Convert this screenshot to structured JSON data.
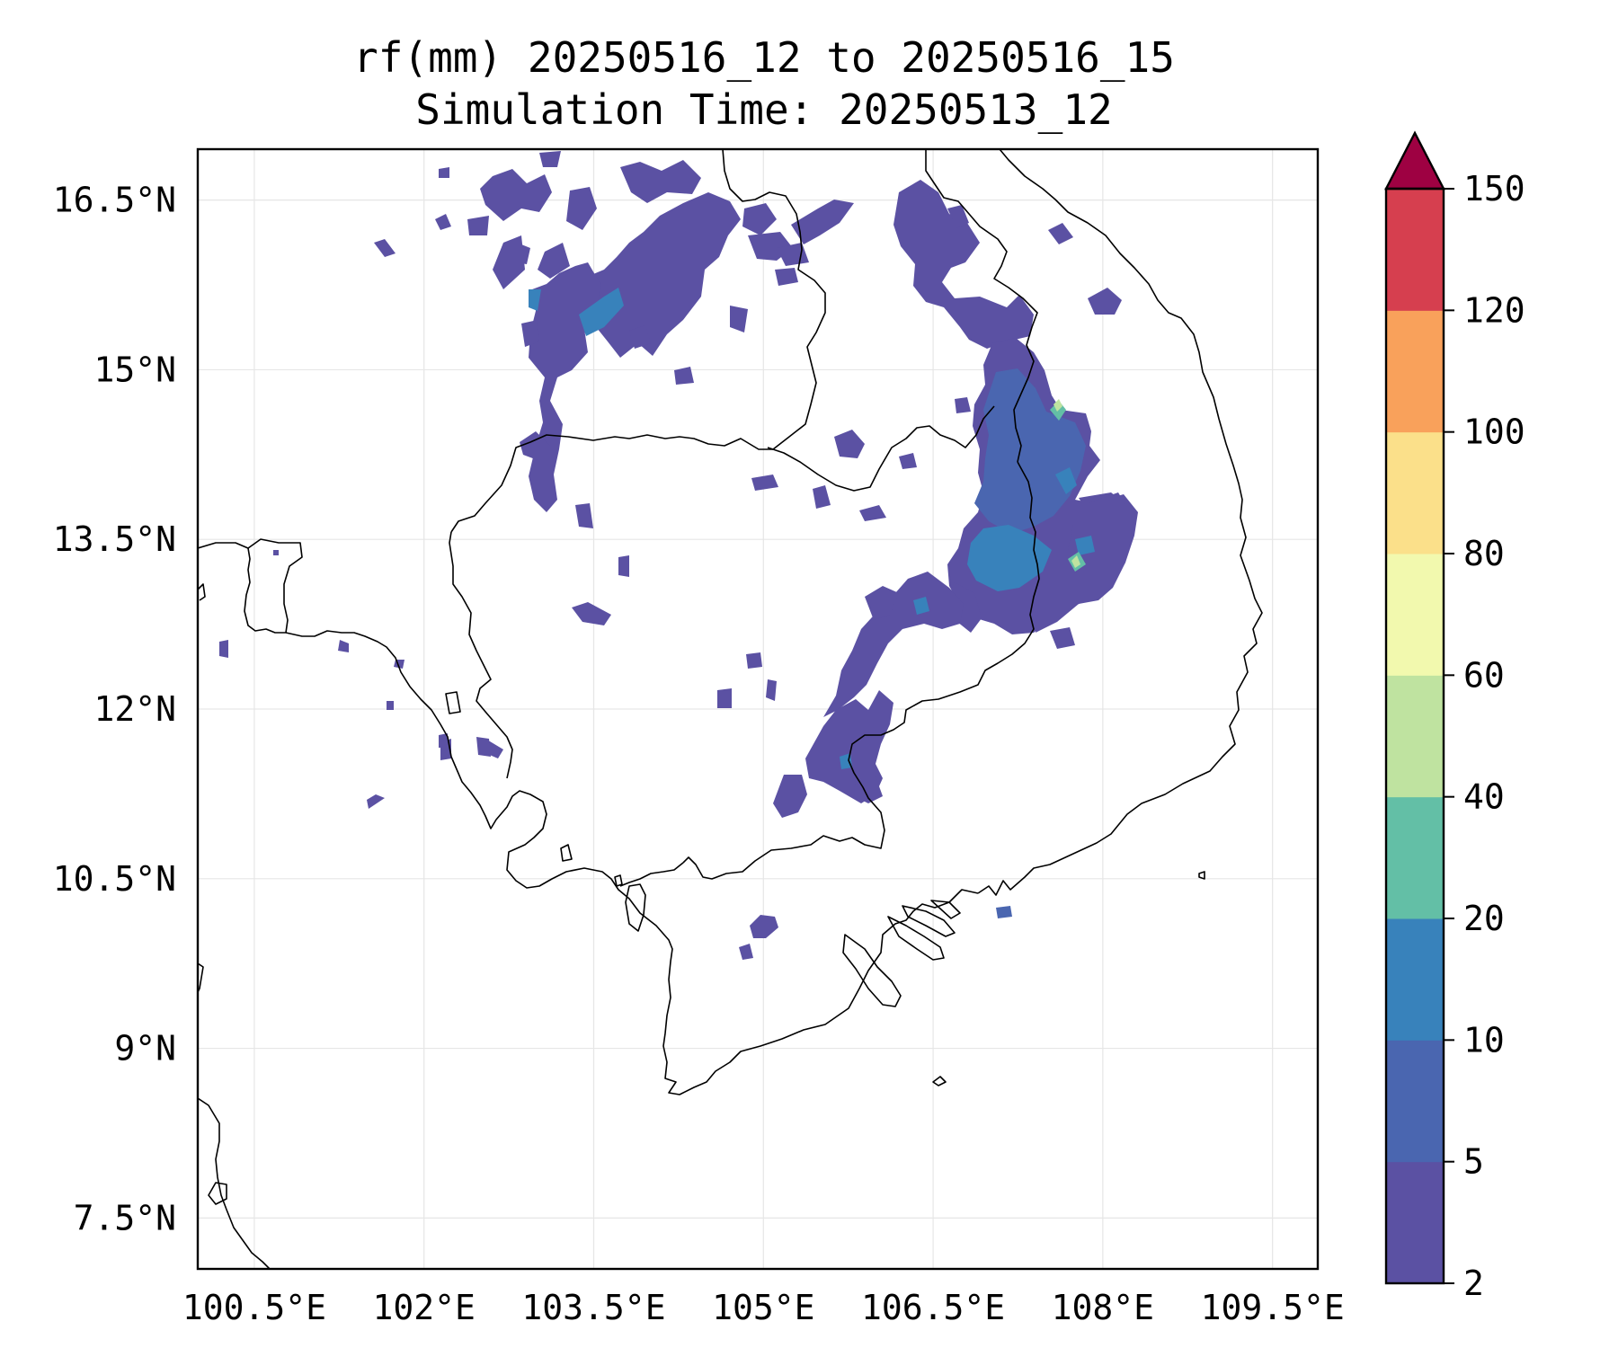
{
  "figure": {
    "title_line1": "rf(mm) 20250516_12 to 20250516_15",
    "title_line2": "Simulation Time: 20250513_12"
  },
  "map": {
    "lon_range": [
      100.0,
      109.9
    ],
    "lat_range": [
      7.05,
      16.95
    ],
    "lon_ticks": [
      {
        "value": 100.5,
        "label": "100.5°E"
      },
      {
        "value": 102.0,
        "label": "102°E"
      },
      {
        "value": 103.5,
        "label": "103.5°E"
      },
      {
        "value": 105.0,
        "label": "105°E"
      },
      {
        "value": 106.5,
        "label": "106.5°E"
      },
      {
        "value": 108.0,
        "label": "108°E"
      },
      {
        "value": 109.5,
        "label": "109.5°E"
      }
    ],
    "lat_ticks": [
      {
        "value": 16.5,
        "label": "16.5°N"
      },
      {
        "value": 15.0,
        "label": "15°N"
      },
      {
        "value": 13.5,
        "label": "13.5°N"
      },
      {
        "value": 12.0,
        "label": "12°N"
      },
      {
        "value": 10.5,
        "label": "10.5°N"
      },
      {
        "value": 9.0,
        "label": "9°N"
      },
      {
        "value": 7.5,
        "label": "7.5°N"
      }
    ],
    "gridlines": true
  },
  "colorbar": {
    "levels": [
      {
        "value": 2,
        "label": "2"
      },
      {
        "value": 5,
        "label": "5"
      },
      {
        "value": 10,
        "label": "10"
      },
      {
        "value": 20,
        "label": "20"
      },
      {
        "value": 40,
        "label": "40"
      },
      {
        "value": 60,
        "label": "60"
      },
      {
        "value": 80,
        "label": "80"
      },
      {
        "value": 100,
        "label": "100"
      },
      {
        "value": 120,
        "label": "120"
      },
      {
        "value": 150,
        "label": "150"
      }
    ],
    "colors": [
      "#5b51a3",
      "#4a66b0",
      "#3882bb",
      "#63bfa6",
      "#bfe3a0",
      "#f2f9ae",
      "#fbe08a",
      "#f9a15b",
      "#d63f4f"
    ],
    "extend_color": "#9e0142",
    "extend": "max"
  },
  "chart_data": {
    "type": "filled_contour_map",
    "variable": "rf(mm)",
    "levels_mm": [
      2,
      5,
      10,
      20,
      40,
      60,
      80,
      100,
      120,
      150
    ],
    "rain_areas": [
      {
        "lon": 103.6,
        "lat": 15.1,
        "level_mm": 10
      },
      {
        "lon": 103.9,
        "lat": 15.4,
        "level_mm": 5
      },
      {
        "lon": 104.5,
        "lat": 15.7,
        "level_mm": 5
      },
      {
        "lon": 104.9,
        "lat": 16.3,
        "level_mm": 5
      },
      {
        "lon": 103.3,
        "lat": 16.5,
        "level_mm": 5
      },
      {
        "lon": 106.9,
        "lat": 16.4,
        "level_mm": 5
      },
      {
        "lon": 107.6,
        "lat": 15.8,
        "level_mm": 5
      },
      {
        "lon": 107.7,
        "lat": 14.6,
        "level_mm": 10
      },
      {
        "lon": 107.9,
        "lat": 14.7,
        "level_mm": 40
      },
      {
        "lon": 107.7,
        "lat": 13.5,
        "level_mm": 10
      },
      {
        "lon": 107.9,
        "lat": 13.2,
        "level_mm": 20
      },
      {
        "lon": 108.0,
        "lat": 13.2,
        "level_mm": 40
      },
      {
        "lon": 107.4,
        "lat": 13.1,
        "level_mm": 10
      },
      {
        "lon": 106.8,
        "lat": 12.6,
        "level_mm": 5
      },
      {
        "lon": 106.3,
        "lat": 11.8,
        "level_mm": 5
      },
      {
        "lon": 105.8,
        "lat": 11.4,
        "level_mm": 5
      },
      {
        "lon": 103.5,
        "lat": 14.0,
        "level_mm": 5
      },
      {
        "lon": 106.0,
        "lat": 14.3,
        "level_mm": 5
      },
      {
        "lon": 105.1,
        "lat": 10.1,
        "level_mm": 5
      }
    ]
  }
}
